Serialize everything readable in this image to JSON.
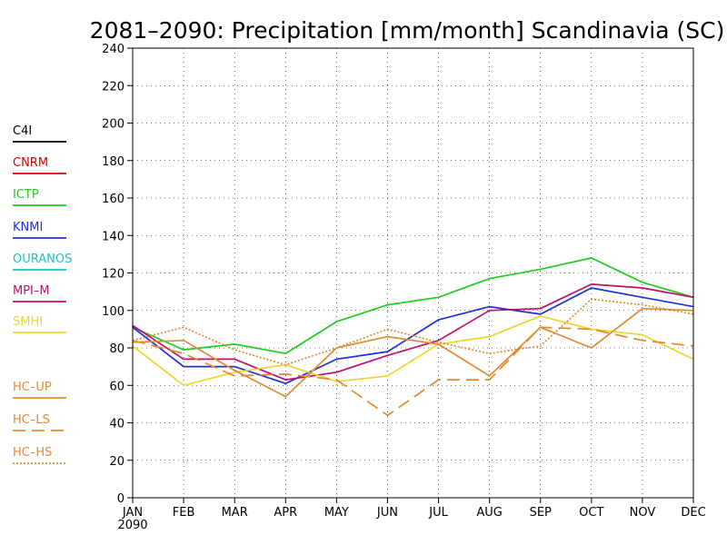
{
  "chart_data": {
    "type": "line",
    "title": "2081–2090: Precipitation [mm/month] Scandinavia (SC)",
    "x_label_extra": "2090",
    "categories": [
      "JAN",
      "FEB",
      "MAR",
      "APR",
      "MAY",
      "JUN",
      "JUL",
      "AUG",
      "SEP",
      "OCT",
      "NOV",
      "DEC"
    ],
    "ylim": [
      0,
      240
    ],
    "yticks": [
      0,
      20,
      40,
      60,
      80,
      100,
      120,
      140,
      160,
      180,
      200,
      220,
      240
    ],
    "grid": true,
    "legend_position": "left",
    "series": [
      {
        "name": "C4I",
        "color": "#000000",
        "dash": "solid",
        "values": [
          null,
          null,
          null,
          null,
          null,
          null,
          null,
          null,
          null,
          null,
          null,
          null
        ]
      },
      {
        "name": "CNRM",
        "color": "#e00000",
        "dash": "solid",
        "values": [
          null,
          null,
          null,
          null,
          null,
          null,
          null,
          null,
          null,
          null,
          null,
          null
        ]
      },
      {
        "name": "ICTP",
        "color": "#1ecc1e",
        "dash": "solid",
        "values": [
          91,
          79,
          82,
          77,
          94,
          103,
          107,
          117,
          122,
          128,
          115,
          107
        ]
      },
      {
        "name": "KNMI",
        "color": "#2030e0",
        "dash": "solid",
        "values": [
          91,
          70,
          70,
          61,
          74,
          78,
          95,
          102,
          98,
          112,
          107,
          102
        ]
      },
      {
        "name": "OURANOS",
        "color": "#20c0c0",
        "dash": "solid",
        "values": [
          null,
          null,
          null,
          null,
          null,
          null,
          null,
          null,
          null,
          null,
          null,
          null
        ]
      },
      {
        "name": "MPI–M",
        "color": "#c0106a",
        "dash": "solid",
        "values": [
          92,
          74,
          74,
          63,
          67,
          76,
          84,
          100,
          101,
          114,
          112,
          107
        ]
      },
      {
        "name": "SMHI",
        "color": "#e8d830",
        "dash": "solid",
        "values": [
          81,
          60,
          67,
          71,
          62,
          65,
          82,
          86,
          97,
          90,
          87,
          74
        ]
      },
      {
        "name": "HC–UP",
        "color": "#e08a30",
        "dash": "solid",
        "values": [
          83,
          84,
          68,
          54,
          80,
          86,
          82,
          65,
          91,
          80,
          101,
          100
        ]
      },
      {
        "name": "HC–LS",
        "color": "#e08a30",
        "dash": "long",
        "values": [
          84,
          77,
          65,
          66,
          63,
          44,
          63,
          63,
          91,
          90,
          84,
          81
        ]
      },
      {
        "name": "HC–HS",
        "color": "#e08a30",
        "dash": "dotted",
        "values": [
          84,
          91,
          79,
          71,
          80,
          90,
          83,
          77,
          81,
          106,
          103,
          98
        ]
      }
    ]
  }
}
